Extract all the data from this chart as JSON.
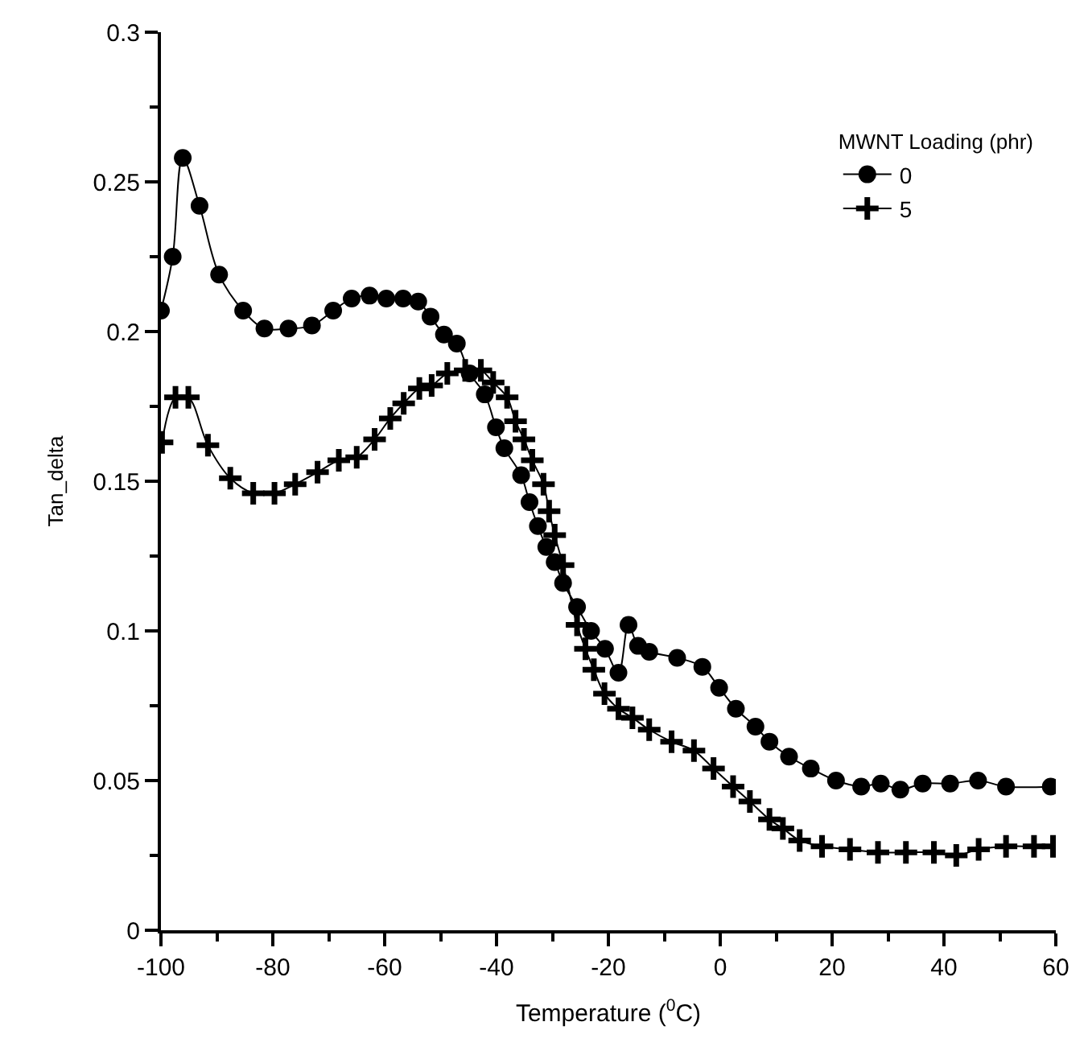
{
  "chart_data": {
    "type": "line",
    "xlabel": "Temperature ($^{0}$C)",
    "ylabel": "Tan_delta",
    "legend_title": "MWNT Loading (phr)",
    "legend": "top right",
    "xlim": [
      -100,
      60
    ],
    "xticks": [
      -100,
      -80,
      -60,
      -40,
      -20,
      0,
      20,
      40,
      60
    ],
    "ylim": [
      0,
      0.3
    ],
    "yticks": [
      0,
      0.05,
      0.1,
      0.15,
      0.2,
      0.25,
      0.3
    ],
    "series": [
      {
        "name": "0",
        "color": "#000000",
        "marker": "circle",
        "x": [
          -100,
          -97.9,
          -96.1,
          -93.1,
          -89.6,
          -85.3,
          -81.5,
          -77.2,
          -73,
          -69.2,
          -65.9,
          -62.7,
          -59.7,
          -56.7,
          -54,
          -51.8,
          -49.4,
          -47.1,
          -44.8,
          -42.1,
          -40.1,
          -38.6,
          -35.6,
          -34.1,
          -32.6,
          -31.1,
          -29.6,
          -28.1,
          -25.6,
          -23.1,
          -20.6,
          -18.2,
          -16.4,
          -14.7,
          -12.7,
          -7.7,
          -3.2,
          -0.2,
          2.8,
          6.3,
          8.8,
          12.3,
          16.2,
          20.7,
          25.2,
          28.7,
          32.2,
          36.2,
          41.1,
          46.1,
          51.1,
          59.1
        ],
        "values": [
          0.207,
          0.225,
          0.258,
          0.242,
          0.219,
          0.207,
          0.201,
          0.201,
          0.202,
          0.207,
          0.211,
          0.212,
          0.211,
          0.211,
          0.21,
          0.205,
          0.199,
          0.196,
          0.186,
          0.179,
          0.168,
          0.161,
          0.152,
          0.143,
          0.135,
          0.128,
          0.123,
          0.116,
          0.108,
          0.1,
          0.094,
          0.086,
          0.102,
          0.095,
          0.093,
          0.091,
          0.088,
          0.081,
          0.074,
          0.068,
          0.063,
          0.058,
          0.054,
          0.05,
          0.048,
          0.049,
          0.047,
          0.049,
          0.049,
          0.05,
          0.048,
          0.048
        ]
      },
      {
        "name": "5",
        "color": "#000000",
        "marker": "cross",
        "x": [
          -99.8,
          -97.4,
          -95.1,
          -91.6,
          -87.6,
          -83.5,
          -79.7,
          -76,
          -72,
          -68.2,
          -65,
          -61.8,
          -59,
          -56.6,
          -53.8,
          -51.6,
          -48.8,
          -45.6,
          -42.8,
          -40.6,
          -38.1,
          -36.6,
          -35.1,
          -33.6,
          -31.6,
          -30.6,
          -29.6,
          -28.1,
          -25.6,
          -24.1,
          -22.6,
          -20.7,
          -18.2,
          -15.7,
          -12.7,
          -8.7,
          -4.7,
          -1.2,
          2.3,
          5.3,
          8.8,
          11.2,
          14.2,
          18.2,
          23.2,
          28.2,
          33.2,
          38.2,
          42.2,
          46.2,
          51.1,
          56.1,
          59.5
        ],
        "values": [
          0.163,
          0.178,
          0.178,
          0.162,
          0.151,
          0.146,
          0.146,
          0.149,
          0.153,
          0.157,
          0.158,
          0.164,
          0.171,
          0.176,
          0.181,
          0.182,
          0.186,
          0.187,
          0.187,
          0.183,
          0.178,
          0.17,
          0.164,
          0.157,
          0.149,
          0.14,
          0.132,
          0.122,
          0.102,
          0.094,
          0.087,
          0.079,
          0.074,
          0.071,
          0.067,
          0.063,
          0.06,
          0.054,
          0.048,
          0.043,
          0.037,
          0.034,
          0.03,
          0.028,
          0.027,
          0.026,
          0.026,
          0.026,
          0.025,
          0.027,
          0.028,
          0.028,
          0.028
        ]
      }
    ]
  }
}
